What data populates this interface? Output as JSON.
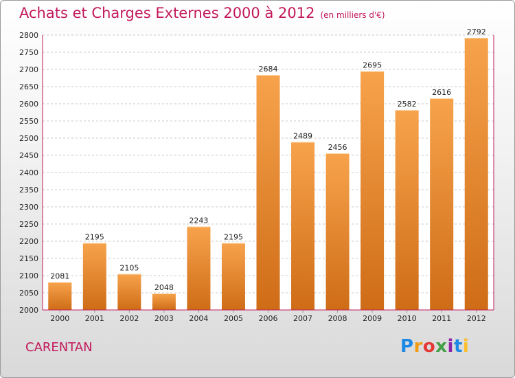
{
  "header": {
    "title": "Achats et Charges Externes 2000 à 2012",
    "subtitle": "(en milliers d'€)"
  },
  "footer": {
    "city": "CARENTAN",
    "logo": "Proxiti"
  },
  "colors": {
    "bar_top": "#f7a34c",
    "bar_bottom": "#cf6c17",
    "title": "#c2185b",
    "axis": "#c2185b"
  },
  "chart_data": {
    "type": "bar",
    "title": "Achats et Charges Externes 2000 à 2012",
    "subtitle": "(en milliers d'€)",
    "categories": [
      "2000",
      "2001",
      "2002",
      "2003",
      "2004",
      "2005",
      "2006",
      "2007",
      "2008",
      "2009",
      "2010",
      "2011",
      "2012"
    ],
    "values": [
      2081,
      2195,
      2105,
      2048,
      2243,
      2195,
      2684,
      2489,
      2456,
      2695,
      2582,
      2616,
      2792
    ],
    "ylim": [
      2000,
      2800
    ],
    "yticks": [
      2000,
      2050,
      2100,
      2150,
      2200,
      2250,
      2300,
      2350,
      2400,
      2450,
      2500,
      2550,
      2600,
      2650,
      2700,
      2750,
      2800
    ],
    "grid": true,
    "legend": "none"
  }
}
